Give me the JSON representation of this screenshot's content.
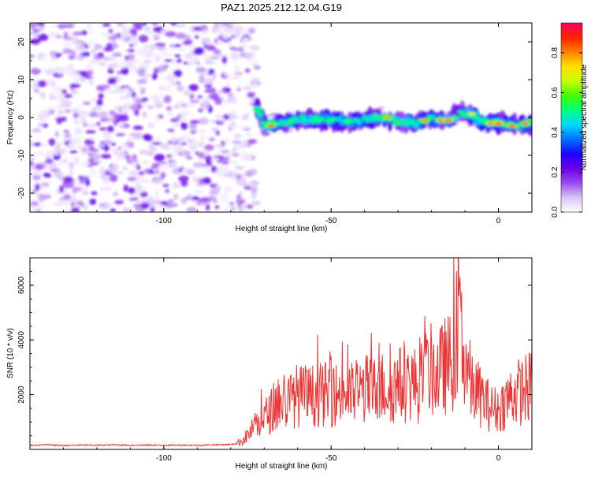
{
  "title": "PAZ1.2025.212.12.04.G19",
  "chart_data": [
    {
      "type": "heatmap",
      "xlabel": "Height of straight line (km)",
      "ylabel": "Frequency (Hz)",
      "xlim": [
        -140,
        10
      ],
      "ylim": [
        -25,
        25
      ],
      "x_ticks": [
        -100,
        -50,
        0
      ],
      "y_ticks": [
        -20,
        -10,
        0,
        10,
        20
      ],
      "colorbar": {
        "label": "Normalized spectral amplitude",
        "range": [
          0,
          0.95
        ],
        "ticks": [
          0.0,
          0.2,
          0.4,
          0.6,
          0.8
        ],
        "colors": [
          "#ffffff",
          "#d8c4f8",
          "#9a4cf0",
          "#6a00e8",
          "#2000ff",
          "#0070ff",
          "#00d8ff",
          "#00ff80",
          "#40ff00",
          "#c8ff00",
          "#ffe000",
          "#ff8000",
          "#ff2000",
          "#ff0060"
        ]
      },
      "noise_region": {
        "x": [
          -140,
          -72
        ],
        "y": [
          -25,
          25
        ]
      },
      "ridge": [
        {
          "x": -72,
          "y": 2.5
        },
        {
          "x": -70,
          "y": -2.0
        },
        {
          "x": -65,
          "y": -1.5
        },
        {
          "x": -60,
          "y": -0.5
        },
        {
          "x": -55,
          "y": -0.5
        },
        {
          "x": -50,
          "y": -0.5
        },
        {
          "x": -45,
          "y": -1.0
        },
        {
          "x": -40,
          "y": -0.5
        },
        {
          "x": -35,
          "y": 0.0
        },
        {
          "x": -30,
          "y": -1.0
        },
        {
          "x": -25,
          "y": -1.5
        },
        {
          "x": -20,
          "y": -0.5
        },
        {
          "x": -15,
          "y": -0.5
        },
        {
          "x": -10,
          "y": 1.5
        },
        {
          "x": -5,
          "y": -1.0
        },
        {
          "x": 0,
          "y": -1.5
        },
        {
          "x": 5,
          "y": -2.0
        },
        {
          "x": 10,
          "y": -1.5
        }
      ],
      "peaks": [
        {
          "x": -68,
          "y": -2.2,
          "v": 0.85
        },
        {
          "x": -33,
          "y": 0.0,
          "v": 0.8
        },
        {
          "x": -22,
          "y": -0.8,
          "v": 0.8
        },
        {
          "x": -17,
          "y": -0.8,
          "v": 0.92
        },
        {
          "x": -15,
          "y": -0.8,
          "v": 0.92
        },
        {
          "x": -8,
          "y": 1.0,
          "v": 0.7
        },
        {
          "x": -2,
          "y": -1.6,
          "v": 0.92
        },
        {
          "x": 0,
          "y": -1.6,
          "v": 0.92
        },
        {
          "x": 4,
          "y": -2.2,
          "v": 0.88
        },
        {
          "x": 8,
          "y": -1.6,
          "v": 0.85
        }
      ]
    },
    {
      "type": "line",
      "xlabel": "Height of straight line (km)",
      "ylabel": "SNR (10 * v/v)",
      "xlim": [
        -140,
        10
      ],
      "ylim": [
        0,
        7000
      ],
      "x_ticks": [
        -100,
        -50,
        0
      ],
      "y_ticks": [
        2000,
        4000,
        6000
      ],
      "series": [
        {
          "color": "#ee3333",
          "points": [
            [
              -140,
              150
            ],
            [
              -135,
              170
            ],
            [
              -130,
              140
            ],
            [
              -125,
              160
            ],
            [
              -120,
              150
            ],
            [
              -115,
              170
            ],
            [
              -110,
              150
            ],
            [
              -105,
              160
            ],
            [
              -100,
              150
            ],
            [
              -95,
              160
            ],
            [
              -90,
              150
            ],
            [
              -85,
              170
            ],
            [
              -80,
              180
            ],
            [
              -78,
              220
            ],
            [
              -76,
              380
            ],
            [
              -74,
              650
            ],
            [
              -72,
              950
            ],
            [
              -70,
              1150
            ],
            [
              -68,
              1400
            ],
            [
              -66,
              1700
            ],
            [
              -64,
              1700
            ],
            [
              -62,
              1800
            ],
            [
              -60,
              2000
            ],
            [
              -58,
              1900
            ],
            [
              -56,
              1950
            ],
            [
              -54,
              2000
            ],
            [
              -52,
              2000
            ],
            [
              -50,
              2050
            ],
            [
              -48,
              2000
            ],
            [
              -46,
              2100
            ],
            [
              -44,
              2000
            ],
            [
              -42,
              2100
            ],
            [
              -40,
              2250
            ],
            [
              -38,
              2100
            ],
            [
              -36,
              2200
            ],
            [
              -34,
              2300
            ],
            [
              -32,
              2200
            ],
            [
              -30,
              2400
            ],
            [
              -28,
              2350
            ],
            [
              -26,
              2450
            ],
            [
              -24,
              2300
            ],
            [
              -22,
              2700
            ],
            [
              -20,
              2900
            ],
            [
              -18,
              2750
            ],
            [
              -16,
              3050
            ],
            [
              -14,
              3150
            ],
            [
              -13,
              3700
            ],
            [
              -12.5,
              4200
            ],
            [
              -11.5,
              6300
            ],
            [
              -11,
              4400
            ],
            [
              -10,
              3500
            ],
            [
              -8,
              2200
            ],
            [
              -6,
              2050
            ],
            [
              -4,
              1750
            ],
            [
              -2,
              1500
            ],
            [
              0,
              1450
            ],
            [
              2,
              1750
            ],
            [
              4,
              2000
            ],
            [
              6,
              2100
            ],
            [
              8,
              2200
            ],
            [
              10,
              2300
            ]
          ]
        }
      ]
    }
  ]
}
